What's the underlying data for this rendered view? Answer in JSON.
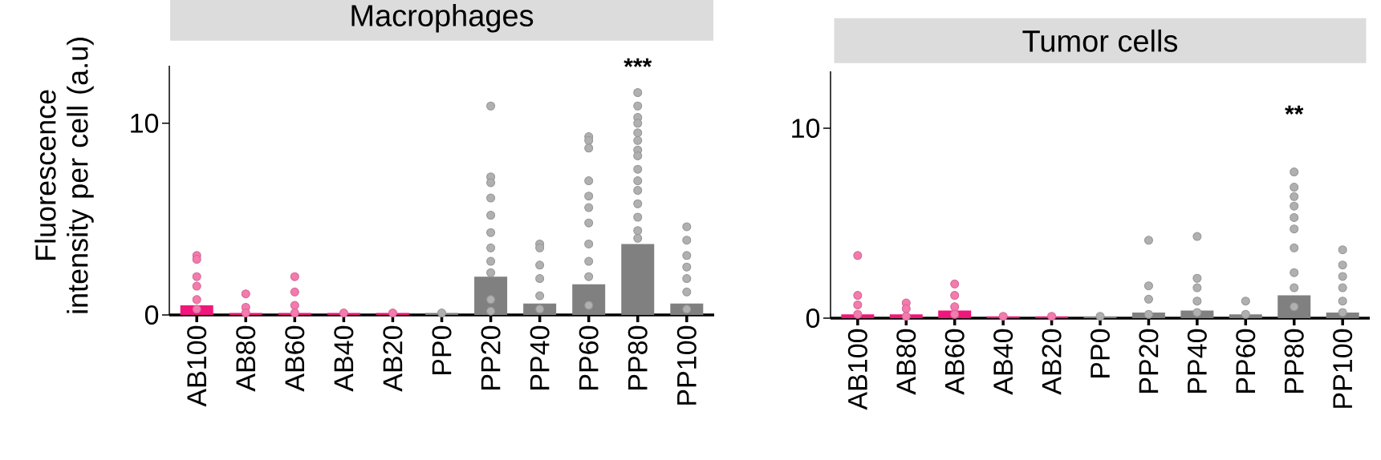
{
  "chart_data": [
    {
      "type": "bar",
      "title": "Macrophages",
      "ylabel": "Fluorescence intensity per cell (a.u)",
      "categories": [
        "AB100",
        "AB80",
        "AB60",
        "AB40",
        "AB20",
        "PP0",
        "PP20",
        "PP40",
        "PP60",
        "PP80",
        "PP100"
      ],
      "ylim": [
        0,
        13
      ],
      "yticks": [
        0,
        10
      ],
      "annotations": [
        "***"
      ],
      "series": [
        {
          "type": "bar",
          "colors": [
            "#f0167b",
            "#f0167b",
            "#f0167b",
            "#f0167b",
            "#f0167b",
            "#808080",
            "#808080",
            "#808080",
            "#808080",
            "#808080",
            "#808080"
          ],
          "values": [
            0.5,
            0.1,
            0.1,
            0.1,
            0.1,
            0.1,
            2.0,
            0.6,
            1.6,
            3.7,
            0.6
          ]
        },
        {
          "type": "scatter",
          "marker": "circle",
          "color": "#f57aae",
          "x": [
            "AB100",
            "AB100",
            "AB100",
            "AB100",
            "AB100",
            "AB100",
            "AB80",
            "AB80",
            "AB80",
            "AB60",
            "AB60",
            "AB60",
            "AB60",
            "AB40",
            "AB20"
          ],
          "values": [
            3.1,
            2.9,
            2.0,
            1.5,
            0.8,
            0.3,
            1.1,
            0.4,
            0.1,
            2.0,
            1.2,
            0.5,
            0.1,
            0.1,
            0.1
          ]
        },
        {
          "type": "scatter",
          "marker": "circle",
          "color": "#b0b0b0",
          "x": [
            "PP0",
            "PP20",
            "PP20",
            "PP20",
            "PP20",
            "PP20",
            "PP20",
            "PP20",
            "PP20",
            "PP20",
            "PP20",
            "PP20",
            "PP40",
            "PP40",
            "PP40",
            "PP40",
            "PP40",
            "PP40",
            "PP60",
            "PP60",
            "PP60",
            "PP60",
            "PP60",
            "PP60",
            "PP60",
            "PP60",
            "PP60",
            "PP60",
            "PP60",
            "PP80",
            "PP80",
            "PP80",
            "PP80",
            "PP80",
            "PP80",
            "PP80",
            "PP80",
            "PP80",
            "PP80",
            "PP80",
            "PP80",
            "PP80",
            "PP80",
            "PP80",
            "PP100",
            "PP100",
            "PP100",
            "PP100",
            "PP100",
            "PP100",
            "PP100"
          ],
          "values": [
            0.1,
            10.9,
            7.2,
            6.9,
            6.1,
            5.2,
            4.3,
            3.5,
            2.8,
            2.2,
            0.8,
            0.2,
            3.7,
            3.5,
            2.6,
            1.9,
            1.0,
            0.3,
            9.3,
            9.1,
            8.7,
            7.0,
            6.2,
            5.6,
            4.8,
            3.7,
            2.8,
            2.0,
            0.5,
            11.6,
            10.9,
            10.3,
            10.0,
            9.5,
            9.1,
            8.6,
            8.3,
            7.6,
            7.0,
            6.5,
            5.8,
            5.1,
            4.4,
            4.0,
            4.6,
            3.9,
            3.1,
            2.5,
            1.9,
            1.2,
            0.3
          ]
        }
      ]
    },
    {
      "type": "bar",
      "title": "Tumor cells",
      "categories": [
        "AB100",
        "AB80",
        "AB60",
        "AB40",
        "AB20",
        "PP0",
        "PP20",
        "PP40",
        "PP60",
        "PP80",
        "PP100"
      ],
      "ylim": [
        0,
        13
      ],
      "yticks": [
        0,
        10
      ],
      "annotations": [
        "**"
      ],
      "series": [
        {
          "type": "bar",
          "colors": [
            "#f0167b",
            "#f0167b",
            "#f0167b",
            "#f0167b",
            "#f0167b",
            "#808080",
            "#808080",
            "#808080",
            "#808080",
            "#808080",
            "#808080"
          ],
          "values": [
            0.2,
            0.2,
            0.4,
            0.1,
            0.1,
            0.1,
            0.3,
            0.4,
            0.2,
            1.2,
            0.3
          ]
        },
        {
          "type": "scatter",
          "marker": "circle",
          "color": "#f57aae",
          "x": [
            "AB100",
            "AB100",
            "AB100",
            "AB100",
            "AB80",
            "AB80",
            "AB80",
            "AB60",
            "AB60",
            "AB60",
            "AB60",
            "AB40",
            "AB20"
          ],
          "values": [
            3.3,
            1.2,
            0.7,
            0.2,
            0.8,
            0.5,
            0.1,
            1.8,
            1.2,
            0.6,
            0.2,
            0.1,
            0.1
          ]
        },
        {
          "type": "scatter",
          "marker": "circle",
          "color": "#b0b0b0",
          "x": [
            "PP0",
            "PP20",
            "PP20",
            "PP20",
            "PP20",
            "PP40",
            "PP40",
            "PP40",
            "PP40",
            "PP40",
            "PP60",
            "PP60",
            "PP80",
            "PP80",
            "PP80",
            "PP80",
            "PP80",
            "PP80",
            "PP80",
            "PP80",
            "PP80",
            "PP80",
            "PP100",
            "PP100",
            "PP100",
            "PP100",
            "PP100",
            "PP100"
          ],
          "values": [
            0.1,
            4.1,
            1.7,
            1.0,
            0.2,
            4.3,
            2.1,
            1.6,
            0.9,
            0.3,
            0.9,
            0.2,
            7.7,
            6.9,
            6.4,
            5.9,
            5.3,
            4.7,
            3.7,
            2.4,
            1.6,
            0.6,
            3.6,
            2.8,
            2.2,
            1.6,
            0.9,
            0.3
          ]
        }
      ]
    }
  ]
}
